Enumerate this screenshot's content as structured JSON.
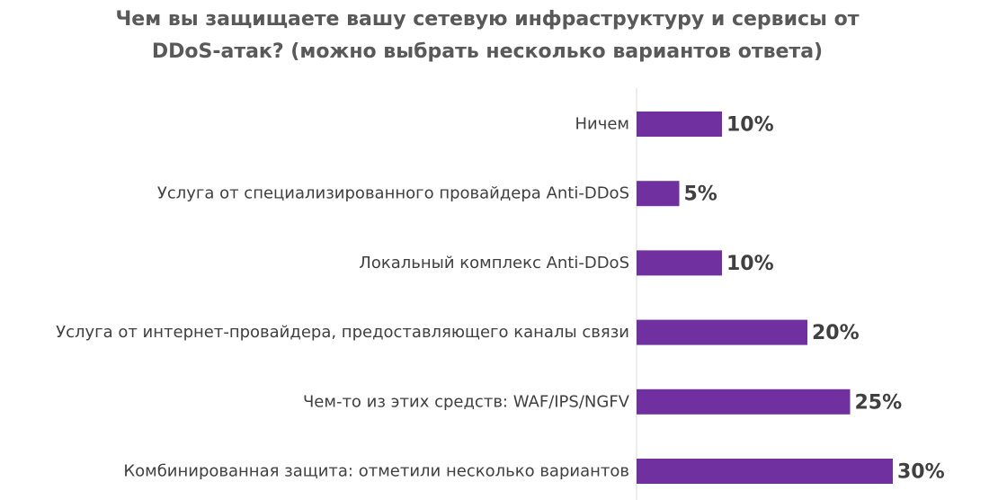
{
  "chart_data": {
    "type": "bar",
    "orientation": "horizontal",
    "title_lines": [
      "Чем вы защищаете вашу сетевую инфраструктуру и сервисы от",
      "DDoS-атак? (можно выбрать несколько вариантов ответа)"
    ],
    "categories": [
      "Ничем",
      "Услуга от специализированного провайдера Anti-DDoS",
      "Локальный комплекс Anti-DDoS",
      "Услуга от интернет-провайдера, предоставляющего каналы связи",
      "Чем-то из этих средств: WAF/IPS/NGFV",
      "Комбинированная защита: отметили несколько вариантов"
    ],
    "values": [
      10,
      5,
      10,
      20,
      25,
      30
    ],
    "value_labels": [
      "10%",
      "5%",
      "10%",
      "20%",
      "25%",
      "30%"
    ],
    "xlim": [
      0,
      30
    ],
    "bar_color": "#7030A0",
    "axis_color": "#d9d9d9",
    "grid": false,
    "legend": "none"
  }
}
